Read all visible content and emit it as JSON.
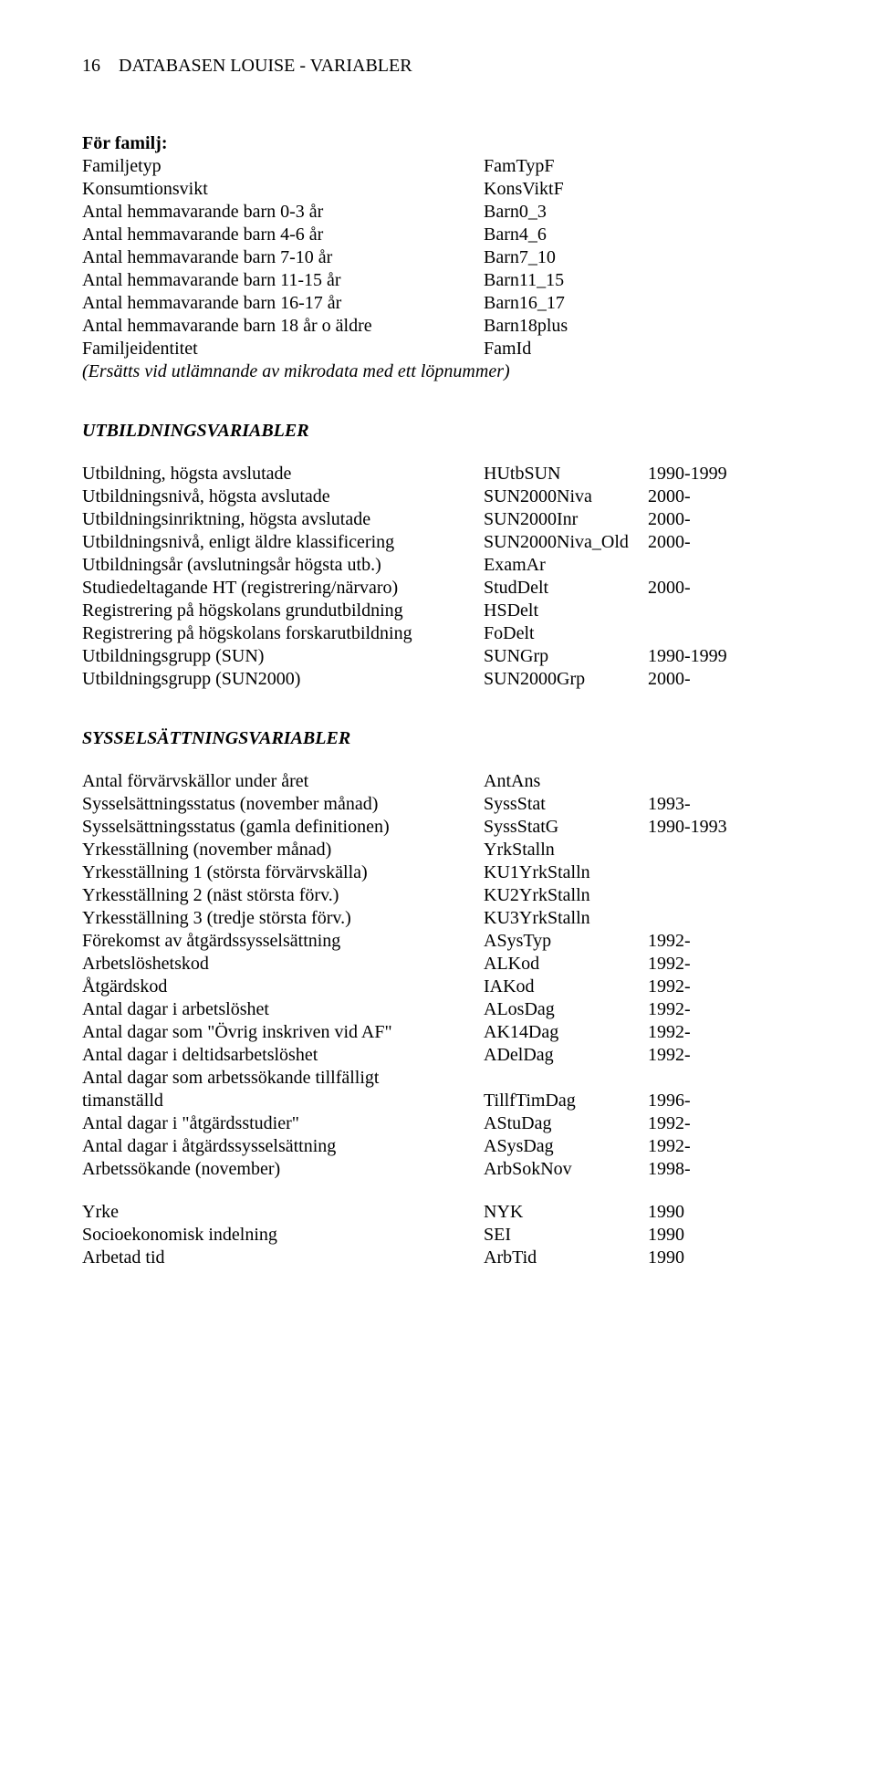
{
  "header": {
    "page_num": "16",
    "title": "DATABASEN LOUISE - VARIABLER"
  },
  "section1": {
    "heading": "För familj:",
    "rows": [
      {
        "label": "Familjetyp",
        "code": "FamTypF",
        "years": ""
      },
      {
        "label": "Konsumtionsvikt",
        "code": "KonsViktF",
        "years": ""
      },
      {
        "label": "Antal hemmavarande barn 0-3 år",
        "code": "Barn0_3",
        "years": ""
      },
      {
        "label": "Antal hemmavarande barn 4-6 år",
        "code": "Barn4_6",
        "years": ""
      },
      {
        "label": "Antal hemmavarande barn 7-10 år",
        "code": "Barn7_10",
        "years": ""
      },
      {
        "label": "Antal hemmavarande barn 11-15 år",
        "code": "Barn11_15",
        "years": ""
      },
      {
        "label": "Antal hemmavarande barn 16-17 år",
        "code": "Barn16_17",
        "years": ""
      },
      {
        "label": "Antal hemmavarande barn 18 år o äldre",
        "code": "Barn18plus",
        "years": ""
      },
      {
        "label": "Familjeidentitet",
        "code": "FamId",
        "years": ""
      }
    ],
    "note": "(Ersätts vid utlämnande av mikrodata med ett löpnummer)"
  },
  "section2": {
    "heading": "UTBILDNINGSVARIABLER",
    "rows": [
      {
        "label": "Utbildning, högsta avslutade",
        "code": "HUtbSUN",
        "years": "1990-1999"
      },
      {
        "label": "Utbildningsnivå, högsta avslutade",
        "code": "SUN2000Niva",
        "years": "2000-"
      },
      {
        "label": "Utbildningsinriktning, högsta avslutade",
        "code": "SUN2000Inr",
        "years": "2000-"
      },
      {
        "label": "Utbildningsnivå, enligt äldre klassificering",
        "code": "SUN2000Niva_Old",
        "years": "2000-"
      },
      {
        "label": "Utbildningsår (avslutningsår högsta utb.)",
        "code": "ExamAr",
        "years": ""
      },
      {
        "label": "Studiedeltagande HT (registrering/närvaro)",
        "code": "StudDelt",
        "years": "2000-"
      },
      {
        "label": "Registrering på högskolans grundutbildning",
        "code": "HSDelt",
        "years": ""
      },
      {
        "label": "Registrering på högskolans forskarutbildning",
        "code": "FoDelt",
        "years": ""
      },
      {
        "label": "Utbildningsgrupp (SUN)",
        "code": "SUNGrp",
        "years": "1990-1999"
      },
      {
        "label": "Utbildningsgrupp (SUN2000)",
        "code": "SUN2000Grp",
        "years": "2000-"
      }
    ]
  },
  "section3": {
    "heading": "SYSSELSÄTTNINGSVARIABLER",
    "rows": [
      {
        "label": "Antal förvärvskällor under året",
        "code": "AntAns",
        "years": ""
      },
      {
        "label": "Sysselsättningsstatus (november månad)",
        "code": "SyssStat",
        "years": "1993-"
      },
      {
        "label": "Sysselsättningsstatus (gamla definitionen)",
        "code": "SyssStatG",
        "years": "1990-1993"
      },
      {
        "label": "Yrkesställning (november månad)",
        "code": "YrkStalln",
        "years": ""
      },
      {
        "label": "Yrkesställning 1 (största förvärvskälla)",
        "code": "KU1YrkStalln",
        "years": ""
      },
      {
        "label": "Yrkesställning 2 (näst största förv.)",
        "code": "KU2YrkStalln",
        "years": ""
      },
      {
        "label": "Yrkesställning 3 (tredje största förv.)",
        "code": "KU3YrkStalln",
        "years": ""
      },
      {
        "label": "Förekomst av åtgärdssysselsättning",
        "code": "ASysTyp",
        "years": "1992-"
      },
      {
        "label": "Arbetslöshetskod",
        "code": "ALKod",
        "years": "1992-"
      },
      {
        "label": "Åtgärdskod",
        "code": "IAKod",
        "years": "1992-"
      },
      {
        "label": "Antal dagar i arbetslöshet",
        "code": "ALosDag",
        "years": "1992-"
      },
      {
        "label": "Antal dagar som \"Övrig inskriven vid AF\"",
        "code": "AK14Dag",
        "years": "1992-"
      },
      {
        "label": "Antal dagar i deltidsarbetslöshet",
        "code": "ADelDag",
        "years": "1992-"
      },
      {
        "label": "Antal dagar som arbetssökande tillfälligt",
        "code": "",
        "years": ""
      },
      {
        "label": "timanställd",
        "code": "TillfTimDag",
        "years": "1996-"
      },
      {
        "label": "Antal dagar i \"åtgärdsstudier\"",
        "code": "AStuDag",
        "years": "1992-"
      },
      {
        "label": "Antal dagar i åtgärdssysselsättning",
        "code": "ASysDag",
        "years": "1992-"
      },
      {
        "label": "Arbetssökande (november)",
        "code": "ArbSokNov",
        "years": "1998-"
      }
    ]
  },
  "section4": {
    "rows": [
      {
        "label": "Yrke",
        "code": "NYK",
        "years": "1990"
      },
      {
        "label": "Socioekonomisk indelning",
        "code": "SEI",
        "years": "1990"
      },
      {
        "label": "Arbetad tid",
        "code": "ArbTid",
        "years": "1990"
      }
    ]
  }
}
